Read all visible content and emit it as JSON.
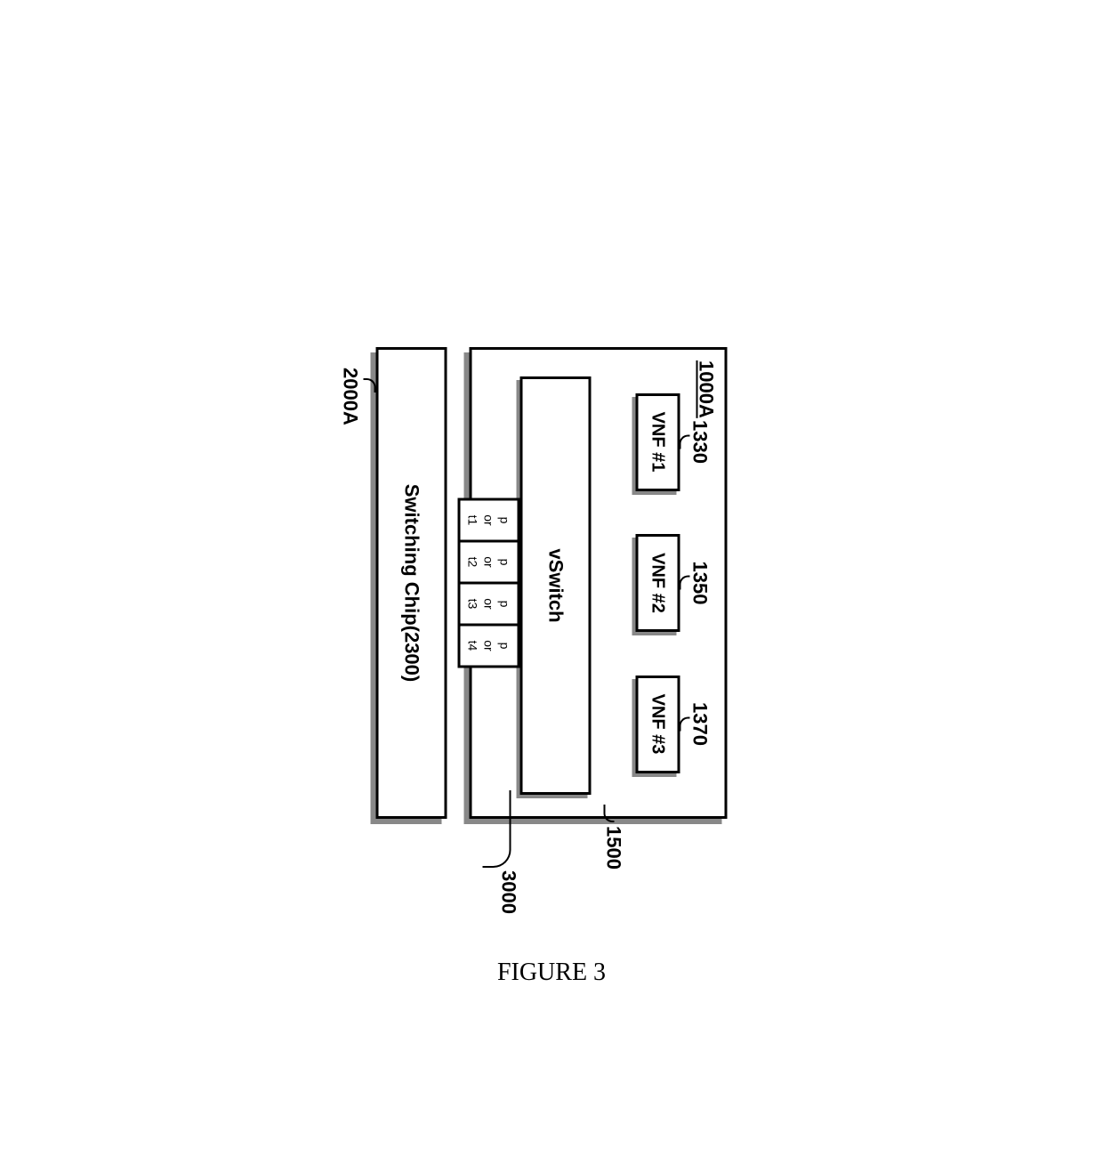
{
  "diagram": {
    "mainBox": {
      "label": "1000A",
      "vnfs": [
        {
          "label": "1330",
          "text": "VNF #1"
        },
        {
          "label": "1350",
          "text": "VNF #2"
        },
        {
          "label": "1370",
          "text": "VNF #3"
        }
      ],
      "vswitch": {
        "text": "vSwitch",
        "numLabel": "1500"
      },
      "ports": [
        {
          "line1": "p",
          "line2": "or",
          "line3": "t1"
        },
        {
          "line1": "p",
          "line2": "or",
          "line3": "t2"
        },
        {
          "line1": "p",
          "line2": "or",
          "line3": "t3"
        },
        {
          "line1": "p",
          "line2": "or",
          "line3": "t4"
        }
      ],
      "portsLabel": "3000"
    },
    "switchingChip": {
      "text": "Switching Chip(2300)",
      "label": "2000A"
    },
    "caption": "FIGURE 3"
  },
  "styling": {
    "borderColor": "#000000",
    "shadowColor": "#888888",
    "backgroundColor": "#ffffff",
    "borderWidth": 3,
    "mainFontSize": 22,
    "portFontSize": 14,
    "captionFontSize": 28
  }
}
